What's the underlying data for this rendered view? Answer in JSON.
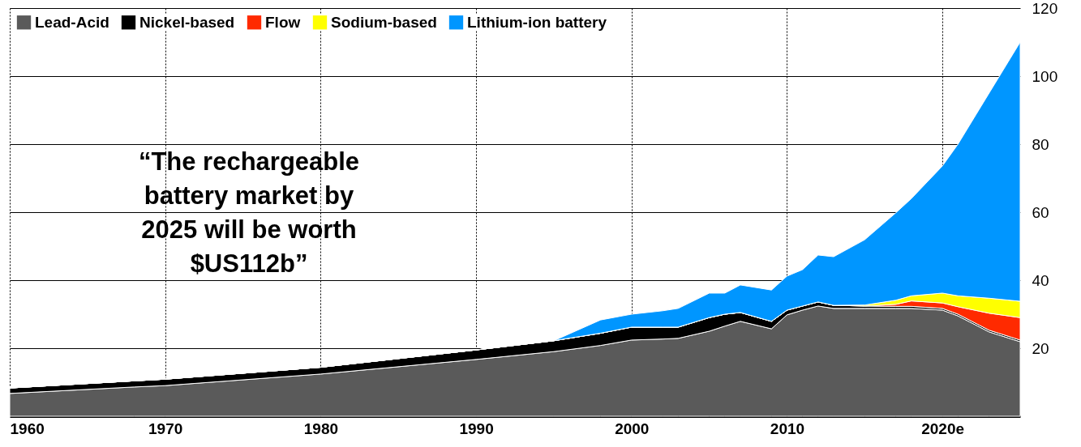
{
  "chart_data": {
    "type": "area",
    "stacked": true,
    "x": [
      1960,
      1968,
      1970,
      1980,
      1990,
      1995,
      1998,
      2000,
      2002,
      2003,
      2005,
      2006,
      2007,
      2009,
      2010,
      2011,
      2012,
      2013,
      2015,
      2017,
      2018,
      2020,
      2021,
      2023,
      2025
    ],
    "series": [
      {
        "name": "Lead-Acid",
        "color": "#5a5a5a",
        "values": [
          6.7,
          8.6,
          9.0,
          12.4,
          16.7,
          19.0,
          20.8,
          22.4,
          22.7,
          22.9,
          25.0,
          26.5,
          27.9,
          25.7,
          29.8,
          31.2,
          32.4,
          31.7,
          31.7,
          31.7,
          31.7,
          31.2,
          29.5,
          24.8,
          21.9
        ]
      },
      {
        "name": "Nickel-based",
        "color": "#000000",
        "values": [
          1.6,
          1.8,
          1.9,
          2.0,
          2.8,
          3.2,
          3.6,
          3.8,
          3.5,
          3.3,
          4.0,
          3.5,
          2.6,
          2.2,
          1.4,
          1.2,
          1.2,
          0.9,
          0.7,
          0.6,
          0.6,
          0.5,
          0.5,
          0.5,
          0.5
        ]
      },
      {
        "name": "Flow",
        "color": "#ff2a00",
        "values": [
          0,
          0,
          0,
          0,
          0,
          0,
          0,
          0,
          0,
          0,
          0,
          0,
          0,
          0,
          0,
          0,
          0,
          0,
          0,
          0.6,
          1.6,
          1.6,
          2.2,
          5.0,
          6.6
        ]
      },
      {
        "name": "Sodium-based",
        "color": "#ffff00",
        "values": [
          0,
          0,
          0,
          0,
          0,
          0,
          0,
          0,
          0,
          0,
          0,
          0,
          0,
          0,
          0,
          0,
          0,
          0,
          0.3,
          1.2,
          1.5,
          2.9,
          3.2,
          4.4,
          4.8
        ]
      },
      {
        "name": "Lithium-ion battery",
        "color": "#0096ff",
        "values": [
          0,
          0,
          0,
          0,
          0,
          0,
          3.9,
          3.8,
          4.8,
          5.5,
          7.2,
          6.2,
          8.1,
          9.2,
          10.0,
          10.7,
          13.8,
          14.3,
          19.2,
          25.7,
          28.6,
          37.4,
          44.6,
          60.3,
          76.2
        ]
      }
    ],
    "xlim": [
      1960,
      2025
    ],
    "xticks": [
      1960,
      1970,
      1980,
      1990,
      2000,
      2010,
      {
        "value": 2020,
        "label": "2020e"
      }
    ],
    "ylim": [
      0,
      120
    ],
    "yticks": [
      20,
      40,
      60,
      80,
      100,
      120
    ],
    "grid": true,
    "legend": "top left",
    "annotations": [
      "“The rechargeable battery market by 2025 will be worth $US112b”"
    ]
  }
}
